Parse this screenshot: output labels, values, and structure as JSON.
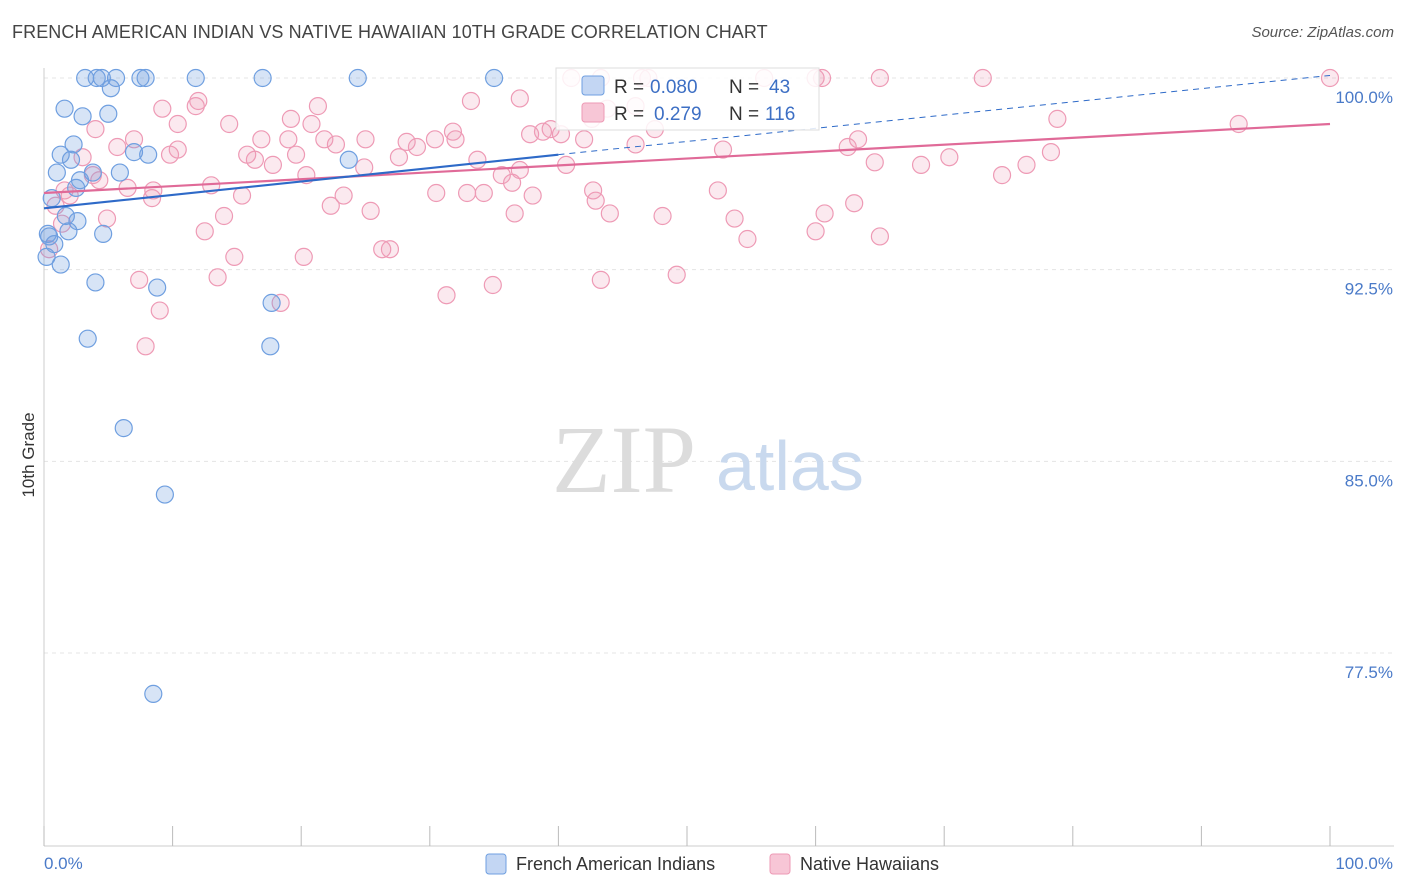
{
  "header": {
    "title": "FRENCH AMERICAN INDIAN VS NATIVE HAWAIIAN 10TH GRADE CORRELATION CHART",
    "source": "Source: ZipAtlas.com"
  },
  "watermark": {
    "part1": "ZIP",
    "part2": "atlas"
  },
  "colors": {
    "blue": "#6f9fe0",
    "pink": "#ee9ab5",
    "blue_line": "#2e6ac8",
    "pink_line": "#e06a98",
    "tick_text": "#4a7ac8"
  },
  "legend_stats": [
    {
      "r_label": "R = ",
      "r_value": "0.080",
      "n_label": "N = ",
      "n_value": "43"
    },
    {
      "r_label": "R = ",
      "r_value": "0.279",
      "n_label": "N = ",
      "n_value": "116"
    }
  ],
  "chart_data": {
    "type": "scatter",
    "ylabel": "10th Grade",
    "xlim": [
      0,
      100
    ],
    "ylim": [
      70.2,
      101.2
    ],
    "y_ticks": [
      100.0,
      92.5,
      85.0,
      77.5
    ],
    "y_tick_labels": [
      "100.0%",
      "92.5%",
      "85.0%",
      "77.5%"
    ],
    "x_tick_labels": [
      "0.0%",
      "100.0%"
    ],
    "grid": true,
    "legend_position": "bottom",
    "series": [
      {
        "name": "French American Indians",
        "color": "#6f9fe0",
        "trend": {
          "x": [
            0,
            40
          ],
          "y": [
            94.9,
            97.0
          ],
          "dashed_to": [
            100,
            100.1
          ]
        },
        "points": [
          [
            3.2,
            100
          ],
          [
            4.1,
            100
          ],
          [
            4.5,
            100
          ],
          [
            5.6,
            100
          ],
          [
            7.5,
            100
          ],
          [
            7.9,
            100
          ],
          [
            11.8,
            100
          ],
          [
            17.0,
            100
          ],
          [
            24.4,
            100
          ],
          [
            35.0,
            100
          ],
          [
            5.2,
            99.6
          ],
          [
            1.6,
            98.8
          ],
          [
            3.0,
            98.5
          ],
          [
            5.0,
            98.6
          ],
          [
            2.3,
            97.4
          ],
          [
            7.0,
            97.1
          ],
          [
            8.1,
            97.0
          ],
          [
            1.3,
            97.0
          ],
          [
            2.1,
            96.8
          ],
          [
            1.0,
            96.3
          ],
          [
            3.8,
            96.3
          ],
          [
            5.9,
            96.3
          ],
          [
            2.8,
            96.0
          ],
          [
            23.7,
            96.8
          ],
          [
            2.5,
            95.7
          ],
          [
            0.6,
            95.3
          ],
          [
            1.7,
            94.6
          ],
          [
            2.6,
            94.4
          ],
          [
            1.9,
            94.0
          ],
          [
            4.6,
            93.9
          ],
          [
            0.4,
            93.8
          ],
          [
            0.8,
            93.5
          ],
          [
            0.2,
            93.0
          ],
          [
            1.3,
            92.7
          ],
          [
            4.0,
            92.0
          ],
          [
            8.8,
            91.8
          ],
          [
            17.7,
            91.2
          ],
          [
            3.4,
            89.8
          ],
          [
            17.6,
            89.5
          ],
          [
            6.2,
            86.3
          ],
          [
            9.4,
            83.7
          ],
          [
            8.5,
            75.9
          ],
          [
            0.3,
            93.9
          ]
        ]
      },
      {
        "name": "Native Hawaiians",
        "color": "#ee9ab5",
        "trend": {
          "x": [
            0,
            100
          ],
          "y": [
            95.5,
            98.2
          ]
        },
        "points": [
          [
            41.0,
            100
          ],
          [
            43.3,
            100
          ],
          [
            46.5,
            100
          ],
          [
            47.0,
            100
          ],
          [
            56.0,
            100
          ],
          [
            60.0,
            100
          ],
          [
            60.5,
            100
          ],
          [
            65.0,
            100
          ],
          [
            73.0,
            100
          ],
          [
            100,
            100
          ],
          [
            9.2,
            98.8
          ],
          [
            11.8,
            98.9
          ],
          [
            12.0,
            99.1
          ],
          [
            21.3,
            98.9
          ],
          [
            33.2,
            99.1
          ],
          [
            37.0,
            99.2
          ],
          [
            43.8,
            98.8
          ],
          [
            46.0,
            98.9
          ],
          [
            4.0,
            98.0
          ],
          [
            10.4,
            98.2
          ],
          [
            14.4,
            98.2
          ],
          [
            19.2,
            98.4
          ],
          [
            20.8,
            98.2
          ],
          [
            31.8,
            97.9
          ],
          [
            37.8,
            97.8
          ],
          [
            38.8,
            97.9
          ],
          [
            39.4,
            98.0
          ],
          [
            40.2,
            97.8
          ],
          [
            42.6,
            98.4
          ],
          [
            47.5,
            98.0
          ],
          [
            63.3,
            97.6
          ],
          [
            78.8,
            98.4
          ],
          [
            92.9,
            98.2
          ],
          [
            5.7,
            97.3
          ],
          [
            7.0,
            97.6
          ],
          [
            10.4,
            97.2
          ],
          [
            16.9,
            97.6
          ],
          [
            19.0,
            97.6
          ],
          [
            21.8,
            97.6
          ],
          [
            22.7,
            97.4
          ],
          [
            25.0,
            97.6
          ],
          [
            28.2,
            97.5
          ],
          [
            29.0,
            97.3
          ],
          [
            30.4,
            97.6
          ],
          [
            32.0,
            97.6
          ],
          [
            42.0,
            97.6
          ],
          [
            46.0,
            97.4
          ],
          [
            52.8,
            97.2
          ],
          [
            62.5,
            97.3
          ],
          [
            3.0,
            96.9
          ],
          [
            9.8,
            97.0
          ],
          [
            15.8,
            97.0
          ],
          [
            16.4,
            96.8
          ],
          [
            17.8,
            96.6
          ],
          [
            19.6,
            97.0
          ],
          [
            24.9,
            96.5
          ],
          [
            27.6,
            96.9
          ],
          [
            33.7,
            96.8
          ],
          [
            35.6,
            96.2
          ],
          [
            37.0,
            96.4
          ],
          [
            40.6,
            96.6
          ],
          [
            64.6,
            96.7
          ],
          [
            68.2,
            96.6
          ],
          [
            70.4,
            96.9
          ],
          [
            76.4,
            96.6
          ],
          [
            78.3,
            97.1
          ],
          [
            1.6,
            95.6
          ],
          [
            3.8,
            96.2
          ],
          [
            4.3,
            96.0
          ],
          [
            6.5,
            95.7
          ],
          [
            8.5,
            95.6
          ],
          [
            13.0,
            95.8
          ],
          [
            15.4,
            95.4
          ],
          [
            20.4,
            96.2
          ],
          [
            30.5,
            95.5
          ],
          [
            32.9,
            95.5
          ],
          [
            34.2,
            95.5
          ],
          [
            36.4,
            95.9
          ],
          [
            38.0,
            95.4
          ],
          [
            42.7,
            95.6
          ],
          [
            52.4,
            95.6
          ],
          [
            74.5,
            96.2
          ],
          [
            2.0,
            95.4
          ],
          [
            4.9,
            94.5
          ],
          [
            8.4,
            95.3
          ],
          [
            14.0,
            94.6
          ],
          [
            22.3,
            95.0
          ],
          [
            23.3,
            95.4
          ],
          [
            25.4,
            94.8
          ],
          [
            36.6,
            94.7
          ],
          [
            42.9,
            95.2
          ],
          [
            44.0,
            94.7
          ],
          [
            48.1,
            94.6
          ],
          [
            53.7,
            94.5
          ],
          [
            60.7,
            94.7
          ],
          [
            63.0,
            95.1
          ],
          [
            12.5,
            94.0
          ],
          [
            14.8,
            93.0
          ],
          [
            20.2,
            93.0
          ],
          [
            26.3,
            93.3
          ],
          [
            26.9,
            93.3
          ],
          [
            54.7,
            93.7
          ],
          [
            60.0,
            94.0
          ],
          [
            65.0,
            93.8
          ],
          [
            7.4,
            92.1
          ],
          [
            13.5,
            92.2
          ],
          [
            31.3,
            91.5
          ],
          [
            34.9,
            91.9
          ],
          [
            43.3,
            92.1
          ],
          [
            49.2,
            92.3
          ],
          [
            9.0,
            90.9
          ],
          [
            18.4,
            91.2
          ],
          [
            7.9,
            89.5
          ],
          [
            0.9,
            95.0
          ],
          [
            1.4,
            94.3
          ],
          [
            0.4,
            93.3
          ]
        ]
      }
    ]
  }
}
